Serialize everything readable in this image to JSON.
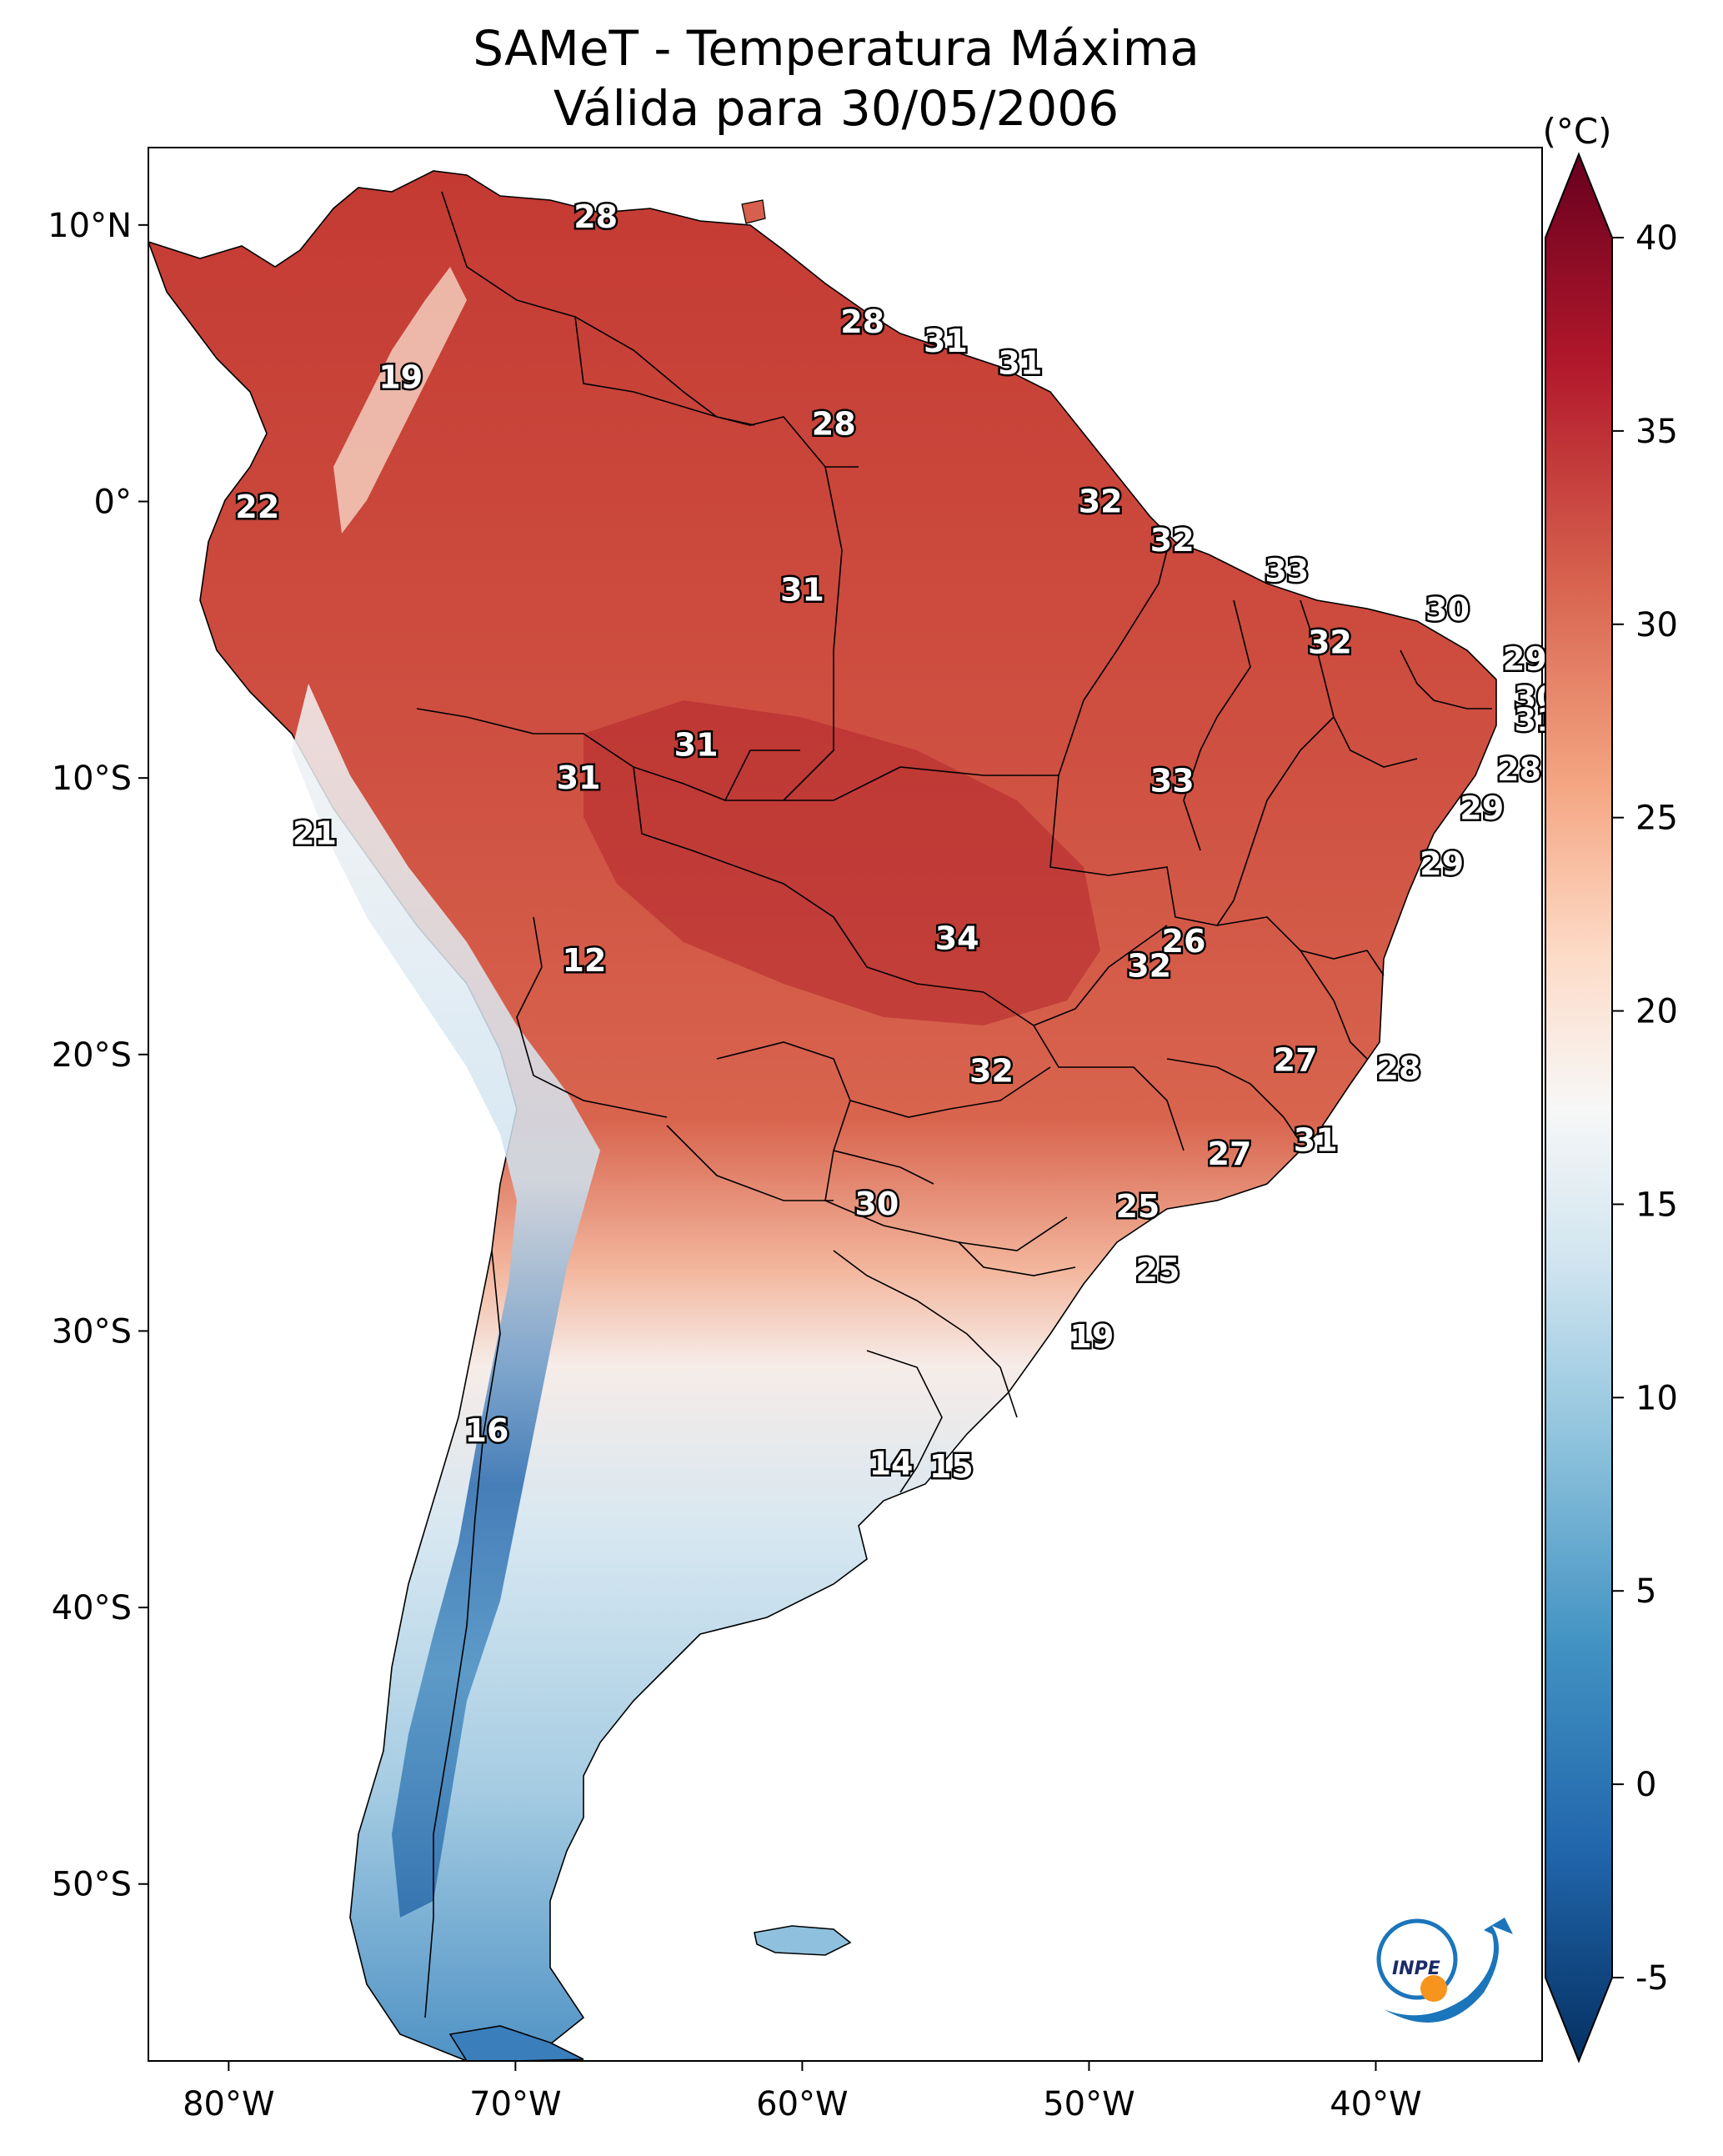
{
  "title": {
    "line1": "SAMeT - Temperatura Máxima",
    "line2": "Válida para 30/05/2006"
  },
  "map": {
    "lon_ticks": [
      "80°W",
      "70°W",
      "60°W",
      "50°W",
      "40°W"
    ],
    "lat_ticks": [
      "10°N",
      "0°",
      "10°S",
      "20°S",
      "30°S",
      "40°S",
      "50°S"
    ],
    "extent": {
      "lon": [
        -82.8,
        -34.2
      ],
      "lat": [
        -56.4,
        12.8
      ]
    }
  },
  "colorbar": {
    "unit": "(°C)",
    "ticks": [
      "40",
      "35",
      "30",
      "25",
      "20",
      "15",
      "10",
      "5",
      "0",
      "-5"
    ],
    "range": [
      -5,
      40
    ],
    "colors": [
      "#053061",
      "#2166ac",
      "#4393c3",
      "#92c5de",
      "#d1e5f0",
      "#f7f7f7",
      "#fddbc7",
      "#f4a582",
      "#d6604d",
      "#b2182b",
      "#67001f"
    ]
  },
  "value_labels": [
    {
      "text": "28",
      "lon": -67.2,
      "lat": 10.3
    },
    {
      "text": "19",
      "lon": -74.0,
      "lat": 4.5
    },
    {
      "text": "28",
      "lon": -57.9,
      "lat": 6.5
    },
    {
      "text": "31",
      "lon": -55.0,
      "lat": 5.8
    },
    {
      "text": "31",
      "lon": -52.4,
      "lat": 5.0
    },
    {
      "text": "28",
      "lon": -58.9,
      "lat": 2.8
    },
    {
      "text": "22",
      "lon": -79.0,
      "lat": -0.2
    },
    {
      "text": "32",
      "lon": -49.6,
      "lat": 0.0
    },
    {
      "text": "32",
      "lon": -47.1,
      "lat": -1.4
    },
    {
      "text": "31",
      "lon": -60.0,
      "lat": -3.2
    },
    {
      "text": "33",
      "lon": -43.1,
      "lat": -2.5
    },
    {
      "text": "30",
      "lon": -37.5,
      "lat": -3.9
    },
    {
      "text": "32",
      "lon": -41.6,
      "lat": -5.1
    },
    {
      "text": "29",
      "lon": -34.8,
      "lat": -5.7
    },
    {
      "text": "30",
      "lon": -34.4,
      "lat": -7.1
    },
    {
      "text": "31",
      "lon": -34.4,
      "lat": -7.9
    },
    {
      "text": "31",
      "lon": -63.7,
      "lat": -8.8
    },
    {
      "text": "31",
      "lon": -67.8,
      "lat": -10.0
    },
    {
      "text": "28",
      "lon": -35.0,
      "lat": -9.7
    },
    {
      "text": "33",
      "lon": -47.1,
      "lat": -10.1
    },
    {
      "text": "29",
      "lon": -36.3,
      "lat": -11.1
    },
    {
      "text": "21",
      "lon": -77.0,
      "lat": -12.0
    },
    {
      "text": "29",
      "lon": -37.7,
      "lat": -13.1
    },
    {
      "text": "34",
      "lon": -54.6,
      "lat": -15.8
    },
    {
      "text": "26",
      "lon": -46.7,
      "lat": -15.9
    },
    {
      "text": "12",
      "lon": -67.6,
      "lat": -16.6
    },
    {
      "text": "32",
      "lon": -47.9,
      "lat": -16.8
    },
    {
      "text": "27",
      "lon": -42.8,
      "lat": -20.2
    },
    {
      "text": "32",
      "lon": -53.4,
      "lat": -20.6
    },
    {
      "text": "28",
      "lon": -39.2,
      "lat": -20.5
    },
    {
      "text": "31",
      "lon": -42.1,
      "lat": -23.1
    },
    {
      "text": "27",
      "lon": -45.1,
      "lat": -23.6
    },
    {
      "text": "30",
      "lon": -57.4,
      "lat": -25.4
    },
    {
      "text": "25",
      "lon": -48.3,
      "lat": -25.5
    },
    {
      "text": "25",
      "lon": -47.6,
      "lat": -27.8
    },
    {
      "text": "19",
      "lon": -49.9,
      "lat": -30.2
    },
    {
      "text": "16",
      "lon": -71.0,
      "lat": -33.6
    },
    {
      "text": "14",
      "lon": -56.9,
      "lat": -34.8
    },
    {
      "text": "15",
      "lon": -54.8,
      "lat": -34.9
    }
  ],
  "logo": {
    "text": "INPE"
  }
}
